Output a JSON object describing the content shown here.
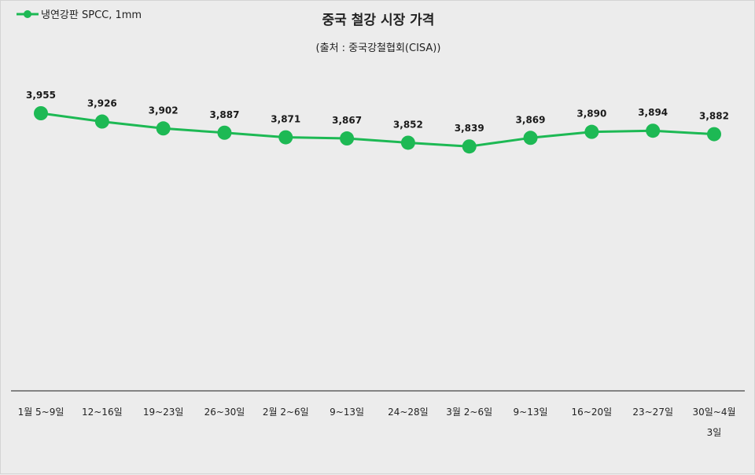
{
  "chart_data": {
    "type": "line",
    "title": "중국 철강 시장 가격",
    "subtitle": "(출처 : 중국강철협회(CISA))",
    "legend_position": "top-left",
    "grid": false,
    "categories": [
      [
        "1월 5~9일"
      ],
      [
        "12~16일"
      ],
      [
        "19~23일"
      ],
      [
        "26~30일"
      ],
      [
        "2월 2~6일"
      ],
      [
        "9~13일"
      ],
      [
        "24~28일"
      ],
      [
        "3월 2~6일"
      ],
      [
        "9~13일"
      ],
      [
        "16~20일"
      ],
      [
        "23~27일"
      ],
      [
        "30일~4월",
        "3일"
      ]
    ],
    "series": [
      {
        "name": "냉연강판 SPCC, 1mm",
        "color": "#1db954",
        "values": [
          3955,
          3926,
          3902,
          3887,
          3871,
          3867,
          3852,
          3839,
          3869,
          3890,
          3894,
          3882
        ],
        "labels": [
          "3,955",
          "3,926",
          "3,902",
          "3,887",
          "3,871",
          "3,867",
          "3,852",
          "3,839",
          "3,869",
          "3,890",
          "3,894",
          "3,882"
        ]
      }
    ]
  }
}
